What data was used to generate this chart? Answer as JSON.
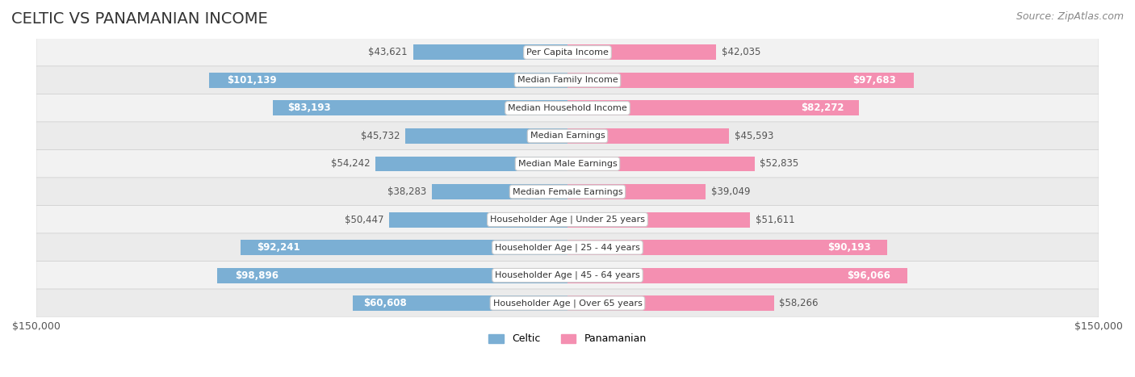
{
  "title": "CELTIC VS PANAMANIAN INCOME",
  "source": "Source: ZipAtlas.com",
  "max_value": 150000,
  "categories": [
    "Per Capita Income",
    "Median Family Income",
    "Median Household Income",
    "Median Earnings",
    "Median Male Earnings",
    "Median Female Earnings",
    "Householder Age | Under 25 years",
    "Householder Age | 25 - 44 years",
    "Householder Age | 45 - 64 years",
    "Householder Age | Over 65 years"
  ],
  "celtic_values": [
    43621,
    101139,
    83193,
    45732,
    54242,
    38283,
    50447,
    92241,
    98896,
    60608
  ],
  "panamanian_values": [
    42035,
    97683,
    82272,
    45593,
    52835,
    39049,
    51611,
    90193,
    96066,
    58266
  ],
  "celtic_color": "#7bafd4",
  "panamanian_color": "#f48fb1",
  "celtic_label": "Celtic",
  "panamanian_label": "Panamanian",
  "bar_height": 0.55,
  "bg_color": "#f5f5f5",
  "row_bg_light": "#f0f0f0",
  "row_bg_dark": "#e8e8e8",
  "label_box_color": "#ffffff",
  "label_box_edge": "#dddddd",
  "title_fontsize": 14,
  "source_fontsize": 9,
  "value_fontsize": 8.5,
  "category_fontsize": 8,
  "axis_fontsize": 9,
  "legend_fontsize": 9
}
